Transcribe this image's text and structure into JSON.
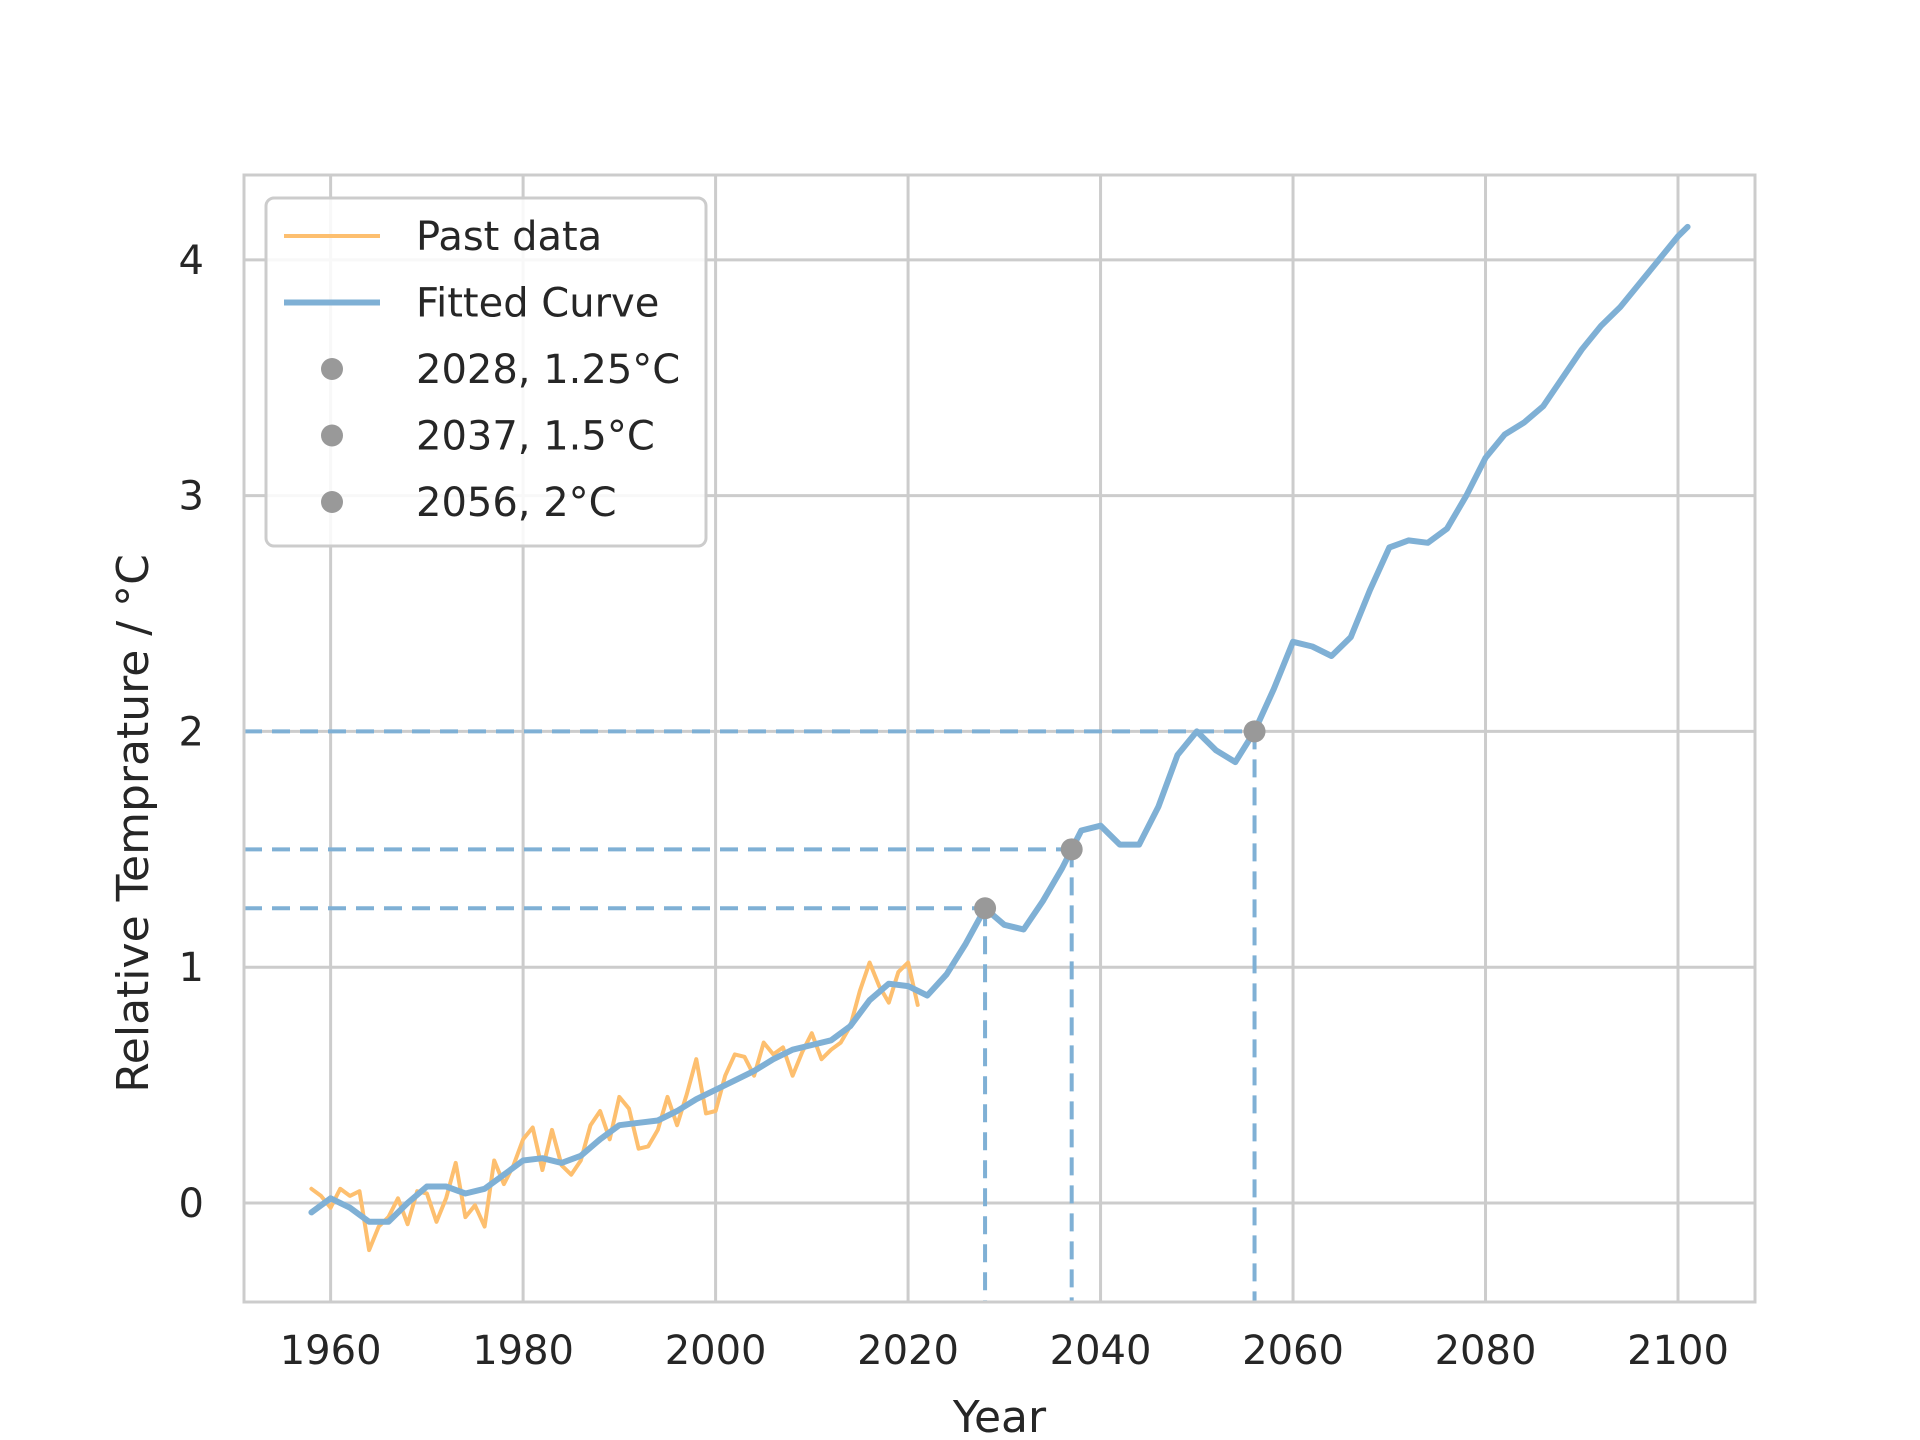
{
  "chart_data": {
    "type": "line",
    "title": "",
    "xlabel": "Year",
    "ylabel": "Relative Temprature / °C",
    "xlim": [
      1951,
      2108
    ],
    "ylim": [
      -0.42,
      4.36
    ],
    "x_ticks": [
      1960,
      1980,
      2000,
      2020,
      2040,
      2060,
      2080,
      2100
    ],
    "y_ticks": [
      0,
      1,
      2,
      3,
      4
    ],
    "grid": true,
    "legend_position": "top-left",
    "colors": {
      "past": "#fdbf6f",
      "fitted": "#7fb0d5",
      "markers": "#999999"
    },
    "series": [
      {
        "name": "Past data",
        "style": "line",
        "x": [
          1958,
          1959,
          1960,
          1961,
          1962,
          1963,
          1964,
          1965,
          1966,
          1967,
          1968,
          1969,
          1970,
          1971,
          1972,
          1973,
          1974,
          1975,
          1976,
          1977,
          1978,
          1979,
          1980,
          1981,
          1982,
          1983,
          1984,
          1985,
          1986,
          1987,
          1988,
          1989,
          1990,
          1991,
          1992,
          1993,
          1994,
          1995,
          1996,
          1997,
          1998,
          1999,
          2000,
          2001,
          2002,
          2003,
          2004,
          2005,
          2006,
          2007,
          2008,
          2009,
          2010,
          2011,
          2012,
          2013,
          2014,
          2015,
          2016,
          2017,
          2018,
          2019,
          2020,
          2021
        ],
        "y": [
          0.06,
          0.03,
          -0.02,
          0.06,
          0.03,
          0.05,
          -0.2,
          -0.1,
          -0.06,
          0.02,
          -0.09,
          0.05,
          0.04,
          -0.08,
          0.02,
          0.17,
          -0.06,
          -0.01,
          -0.1,
          0.18,
          0.08,
          0.16,
          0.27,
          0.32,
          0.14,
          0.31,
          0.16,
          0.12,
          0.18,
          0.33,
          0.39,
          0.27,
          0.45,
          0.4,
          0.23,
          0.24,
          0.31,
          0.45,
          0.33,
          0.46,
          0.61,
          0.38,
          0.39,
          0.54,
          0.63,
          0.62,
          0.54,
          0.68,
          0.63,
          0.66,
          0.54,
          0.64,
          0.72,
          0.61,
          0.65,
          0.68,
          0.75,
          0.9,
          1.02,
          0.92,
          0.85,
          0.98,
          1.02,
          0.84
        ]
      },
      {
        "name": "Fitted Curve",
        "style": "line",
        "x": [
          1958,
          1960,
          1962,
          1964,
          1966,
          1968,
          1970,
          1972,
          1974,
          1976,
          1978,
          1980,
          1982,
          1984,
          1986,
          1988,
          1990,
          1992,
          1994,
          1996,
          1998,
          2000,
          2002,
          2004,
          2006,
          2008,
          2010,
          2012,
          2014,
          2016,
          2018,
          2020,
          2022,
          2024,
          2026,
          2028,
          2030,
          2032,
          2034,
          2036,
          2038,
          2040,
          2042,
          2044,
          2046,
          2048,
          2050,
          2052,
          2054,
          2056,
          2058,
          2060,
          2062,
          2064,
          2066,
          2068,
          2070,
          2072,
          2074,
          2076,
          2078,
          2080,
          2082,
          2084,
          2086,
          2088,
          2090,
          2092,
          2094,
          2096,
          2098,
          2100,
          2101
        ],
        "y": [
          -0.04,
          0.02,
          -0.02,
          -0.08,
          -0.08,
          0.0,
          0.07,
          0.07,
          0.04,
          0.06,
          0.12,
          0.18,
          0.19,
          0.17,
          0.2,
          0.27,
          0.33,
          0.34,
          0.35,
          0.39,
          0.44,
          0.48,
          0.52,
          0.56,
          0.61,
          0.65,
          0.67,
          0.69,
          0.75,
          0.86,
          0.93,
          0.92,
          0.88,
          0.97,
          1.1,
          1.25,
          1.18,
          1.16,
          1.28,
          1.42,
          1.58,
          1.6,
          1.52,
          1.52,
          1.68,
          1.9,
          2.0,
          1.92,
          1.87,
          2.0,
          2.18,
          2.38,
          2.36,
          2.32,
          2.4,
          2.6,
          2.78,
          2.81,
          2.8,
          2.86,
          3.0,
          3.16,
          3.26,
          3.31,
          3.38,
          3.5,
          3.62,
          3.72,
          3.8,
          3.9,
          4.0,
          4.1,
          4.14
        ]
      },
      {
        "name": "2028, 1.25°C",
        "style": "marker",
        "x": [
          2028
        ],
        "y": [
          1.25
        ]
      },
      {
        "name": "2037, 1.5°C",
        "style": "marker",
        "x": [
          2037
        ],
        "y": [
          1.5
        ]
      },
      {
        "name": "2056, 2°C",
        "style": "marker",
        "x": [
          2056
        ],
        "y": [
          2.0
        ]
      }
    ],
    "reference_lines": [
      {
        "x": 2028,
        "y": 1.25
      },
      {
        "x": 2037,
        "y": 1.5
      },
      {
        "x": 2056,
        "y": 2.0
      }
    ]
  }
}
